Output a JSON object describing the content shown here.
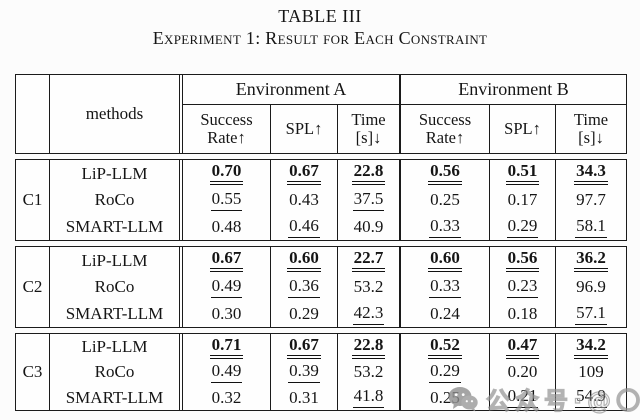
{
  "caption": {
    "label": "TABLE III",
    "title": "Experiment 1: Result for Each Constraint"
  },
  "table": {
    "corner": "",
    "methods_header": "methods",
    "env_a": "Environment A",
    "env_b": "Environment B",
    "metrics": [
      {
        "l1": "Success",
        "l2": "Rate↑"
      },
      {
        "l1": "SPL↑",
        "l2": ""
      },
      {
        "l1": "Time",
        "l2": "[s]↓"
      }
    ],
    "sections": [
      {
        "label": "C1",
        "rows": [
          {
            "method": "LiP-LLM",
            "cells": [
              {
                "v": "0.70",
                "e": "best"
              },
              {
                "v": "0.67",
                "e": "best"
              },
              {
                "v": "22.8",
                "e": "best"
              },
              {
                "v": "0.56",
                "e": "best"
              },
              {
                "v": "0.51",
                "e": "best"
              },
              {
                "v": "34.3",
                "e": "best"
              }
            ]
          },
          {
            "method": "RoCo",
            "cells": [
              {
                "v": "0.55",
                "e": "second"
              },
              {
                "v": "0.43",
                "e": "none"
              },
              {
                "v": "37.5",
                "e": "second"
              },
              {
                "v": "0.25",
                "e": "none"
              },
              {
                "v": "0.17",
                "e": "none"
              },
              {
                "v": "97.7",
                "e": "none"
              }
            ]
          },
          {
            "method": "SMART-LLM",
            "cells": [
              {
                "v": "0.48",
                "e": "none"
              },
              {
                "v": "0.46",
                "e": "second"
              },
              {
                "v": "40.9",
                "e": "none"
              },
              {
                "v": "0.33",
                "e": "second"
              },
              {
                "v": "0.29",
                "e": "second"
              },
              {
                "v": "58.1",
                "e": "second"
              }
            ]
          }
        ]
      },
      {
        "label": "C2",
        "rows": [
          {
            "method": "LiP-LLM",
            "cells": [
              {
                "v": "0.67",
                "e": "best"
              },
              {
                "v": "0.60",
                "e": "best"
              },
              {
                "v": "22.7",
                "e": "best"
              },
              {
                "v": "0.60",
                "e": "best"
              },
              {
                "v": "0.56",
                "e": "best"
              },
              {
                "v": "36.2",
                "e": "best"
              }
            ]
          },
          {
            "method": "RoCo",
            "cells": [
              {
                "v": "0.49",
                "e": "second"
              },
              {
                "v": "0.36",
                "e": "second"
              },
              {
                "v": "53.2",
                "e": "none"
              },
              {
                "v": "0.33",
                "e": "second"
              },
              {
                "v": "0.23",
                "e": "second"
              },
              {
                "v": "96.9",
                "e": "none"
              }
            ]
          },
          {
            "method": "SMART-LLM",
            "cells": [
              {
                "v": "0.30",
                "e": "none"
              },
              {
                "v": "0.29",
                "e": "none"
              },
              {
                "v": "42.3",
                "e": "second"
              },
              {
                "v": "0.24",
                "e": "none"
              },
              {
                "v": "0.18",
                "e": "none"
              },
              {
                "v": "57.1",
                "e": "second"
              }
            ]
          }
        ]
      },
      {
        "label": "C3",
        "rows": [
          {
            "method": "LiP-LLM",
            "cells": [
              {
                "v": "0.71",
                "e": "best"
              },
              {
                "v": "0.67",
                "e": "best"
              },
              {
                "v": "22.8",
                "e": "best"
              },
              {
                "v": "0.52",
                "e": "best"
              },
              {
                "v": "0.47",
                "e": "best"
              },
              {
                "v": "34.2",
                "e": "best"
              }
            ]
          },
          {
            "method": "RoCo",
            "cells": [
              {
                "v": "0.49",
                "e": "second"
              },
              {
                "v": "0.39",
                "e": "second"
              },
              {
                "v": "53.2",
                "e": "none"
              },
              {
                "v": "0.29",
                "e": "second"
              },
              {
                "v": "0.20",
                "e": "none"
              },
              {
                "v": "109",
                "e": "none"
              }
            ]
          },
          {
            "method": "SMART-LLM",
            "cells": [
              {
                "v": "0.32",
                "e": "none"
              },
              {
                "v": "0.31",
                "e": "none"
              },
              {
                "v": "41.8",
                "e": "second"
              },
              {
                "v": "0.25",
                "e": "none"
              },
              {
                "v": "0.21",
                "e": "second"
              },
              {
                "v": "54.9",
                "e": "second"
              }
            ]
          }
        ]
      }
    ]
  },
  "watermark": {
    "icon": "wechat-icon",
    "text": "公众号·@〇〇"
  }
}
